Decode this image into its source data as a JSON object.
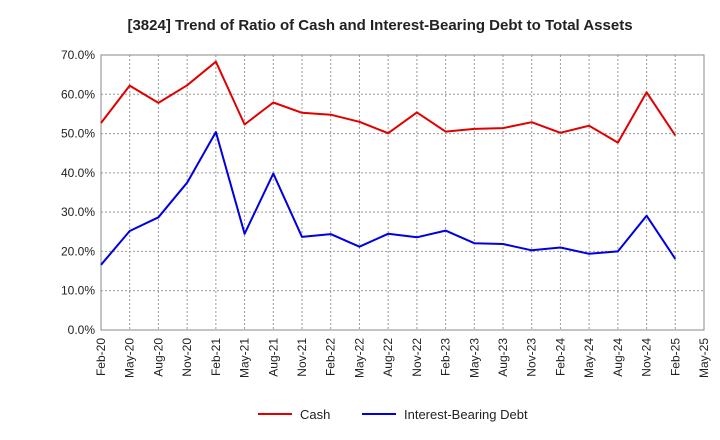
{
  "chart_data": {
    "type": "line",
    "title": "[3824]  Trend of Ratio of Cash and Interest-Bearing Debt to Total Assets",
    "xlabel": "",
    "ylabel": "",
    "ylim": [
      0,
      70
    ],
    "y_ticks": [
      "0.0%",
      "10.0%",
      "20.0%",
      "30.0%",
      "40.0%",
      "50.0%",
      "60.0%",
      "70.0%"
    ],
    "x_ticks": [
      "Feb-20",
      "May-20",
      "Aug-20",
      "Nov-20",
      "Feb-21",
      "May-21",
      "Aug-21",
      "Nov-21",
      "Feb-22",
      "May-22",
      "Aug-22",
      "Nov-22",
      "Feb-23",
      "May-23",
      "Aug-23",
      "Nov-23",
      "Feb-24",
      "May-24",
      "Aug-24",
      "Nov-24",
      "Feb-25",
      "May-25"
    ],
    "x": [
      "Feb-20",
      "May-20",
      "Aug-20",
      "Nov-20",
      "Feb-21",
      "May-21",
      "Aug-21",
      "Nov-21",
      "Feb-22",
      "May-22",
      "Aug-22",
      "Nov-22",
      "Feb-23",
      "May-23",
      "Aug-23",
      "Nov-23",
      "Feb-24",
      "May-24",
      "Aug-24",
      "Nov-24",
      "Feb-25"
    ],
    "grid": true,
    "legend_position": "bottom-center",
    "series": [
      {
        "name": "Cash",
        "color": "#e00000",
        "values": [
          52.7,
          62.2,
          57.8,
          62.3,
          68.3,
          52.3,
          57.9,
          55.3,
          54.8,
          53.0,
          50.1,
          55.4,
          50.5,
          51.2,
          51.4,
          52.9,
          50.2,
          52.0,
          47.7,
          60.5,
          49.5
        ]
      },
      {
        "name": "Interest-Bearing Debt",
        "color": "#0000e0",
        "values": [
          16.6,
          25.2,
          28.7,
          37.5,
          50.4,
          24.5,
          39.8,
          23.7,
          24.4,
          21.2,
          24.5,
          23.6,
          25.3,
          22.1,
          21.9,
          20.3,
          21.0,
          19.4,
          20.0,
          29.1,
          18.1
        ]
      }
    ]
  }
}
